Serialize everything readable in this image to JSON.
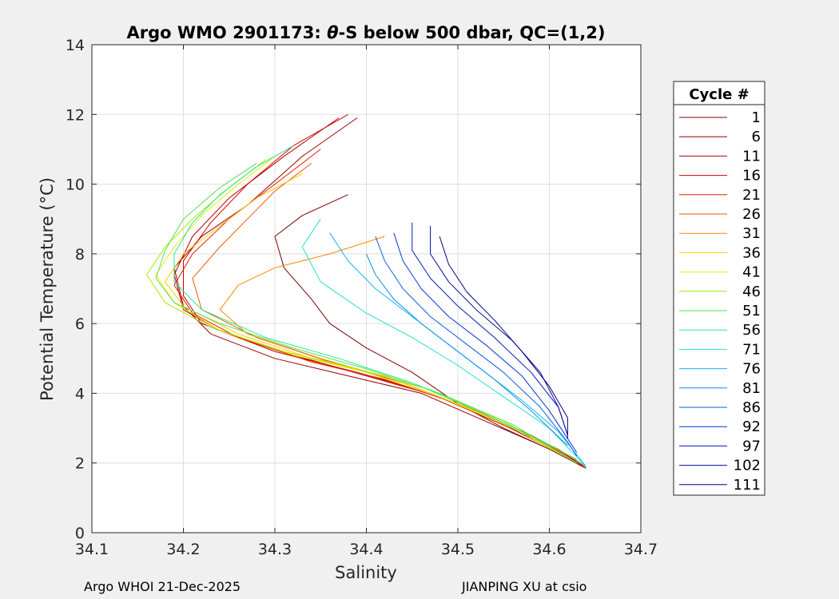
{
  "footer": {
    "left": "Argo WHOI 21-Dec-2025",
    "right": "JIANPING XU at csio"
  },
  "chart_data": {
    "type": "line",
    "title_prefix": "Argo WMO 2901173: ",
    "title_symbol": "θ",
    "title_suffix": "-S below 500 dbar,  QC=(1,2)",
    "xlabel": "Salinity",
    "ylabel": "Potential Temperature (°C)",
    "xlim": [
      34.1,
      34.7
    ],
    "ylim": [
      0,
      14
    ],
    "xticks": [
      34.1,
      34.2,
      34.3,
      34.4,
      34.5,
      34.6,
      34.7
    ],
    "xtick_labels": [
      "34.1",
      "34.2",
      "34.3",
      "34.4",
      "34.5",
      "34.6",
      "34.7"
    ],
    "yticks": [
      0,
      2,
      4,
      6,
      8,
      10,
      12,
      14
    ],
    "ytick_labels": [
      "0",
      "2",
      "4",
      "6",
      "8",
      "10",
      "12",
      "14"
    ],
    "grid": true,
    "legend_title": "Cycle #",
    "legend_position": "right-outside",
    "series": [
      {
        "name": "1",
        "color": "#7f0000",
        "points": [
          [
            34.38,
            9.7
          ],
          [
            34.33,
            9.1
          ],
          [
            34.3,
            8.5
          ],
          [
            34.31,
            7.6
          ],
          [
            34.34,
            6.7
          ],
          [
            34.36,
            6.0
          ],
          [
            34.4,
            5.3
          ],
          [
            34.45,
            4.6
          ],
          [
            34.5,
            3.7
          ],
          [
            34.55,
            3.0
          ],
          [
            34.6,
            2.4
          ],
          [
            34.64,
            1.85
          ]
        ]
      },
      {
        "name": "6",
        "color": "#9a0000",
        "points": [
          [
            34.39,
            11.9
          ],
          [
            34.33,
            10.8
          ],
          [
            34.27,
            9.4
          ],
          [
            34.22,
            8.5
          ],
          [
            34.19,
            7.6
          ],
          [
            34.2,
            6.5
          ],
          [
            34.23,
            5.7
          ],
          [
            34.3,
            5.0
          ],
          [
            34.38,
            4.5
          ],
          [
            34.46,
            4.0
          ],
          [
            34.53,
            3.2
          ],
          [
            34.6,
            2.4
          ],
          [
            34.64,
            1.85
          ]
        ]
      },
      {
        "name": "11",
        "color": "#b50000",
        "points": [
          [
            34.37,
            11.9
          ],
          [
            34.31,
            10.8
          ],
          [
            34.25,
            9.6
          ],
          [
            34.21,
            8.5
          ],
          [
            34.19,
            7.4
          ],
          [
            34.2,
            6.4
          ],
          [
            34.24,
            5.8
          ],
          [
            34.32,
            5.1
          ],
          [
            34.4,
            4.5
          ],
          [
            34.48,
            3.9
          ],
          [
            34.55,
            3.1
          ],
          [
            34.61,
            2.3
          ],
          [
            34.64,
            1.9
          ]
        ]
      },
      {
        "name": "16",
        "color": "#d00000",
        "points": [
          [
            34.38,
            12.0
          ],
          [
            34.32,
            11.1
          ],
          [
            34.27,
            10.0
          ],
          [
            34.23,
            8.9
          ],
          [
            34.2,
            7.8
          ],
          [
            34.2,
            6.8
          ],
          [
            34.22,
            6.0
          ],
          [
            34.3,
            5.2
          ],
          [
            34.39,
            4.6
          ],
          [
            34.47,
            4.0
          ],
          [
            34.54,
            3.2
          ],
          [
            34.61,
            2.4
          ],
          [
            34.64,
            1.85
          ]
        ]
      },
      {
        "name": "21",
        "color": "#e51a00",
        "points": [
          [
            34.35,
            11.0
          ],
          [
            34.3,
            10.0
          ],
          [
            34.25,
            9.0
          ],
          [
            34.21,
            8.0
          ],
          [
            34.19,
            7.1
          ],
          [
            34.21,
            6.3
          ],
          [
            34.26,
            5.6
          ],
          [
            34.34,
            4.9
          ],
          [
            34.42,
            4.4
          ],
          [
            34.5,
            3.7
          ],
          [
            34.57,
            2.9
          ],
          [
            34.62,
            2.2
          ],
          [
            34.64,
            1.9
          ]
        ]
      },
      {
        "name": "26",
        "color": "#ef5a00",
        "points": [
          [
            34.34,
            10.6
          ],
          [
            34.3,
            9.8
          ],
          [
            34.27,
            9.0
          ],
          [
            34.24,
            8.2
          ],
          [
            34.21,
            7.3
          ],
          [
            34.22,
            6.4
          ],
          [
            34.28,
            5.6
          ],
          [
            34.36,
            4.9
          ],
          [
            34.44,
            4.3
          ],
          [
            34.51,
            3.6
          ],
          [
            34.58,
            2.8
          ],
          [
            34.63,
            2.1
          ]
        ]
      },
      {
        "name": "31",
        "color": "#f58a00",
        "points": [
          [
            34.42,
            8.5
          ],
          [
            34.36,
            8.0
          ],
          [
            34.3,
            7.6
          ],
          [
            34.26,
            7.1
          ],
          [
            34.24,
            6.4
          ],
          [
            34.27,
            5.7
          ],
          [
            34.35,
            5.0
          ],
          [
            34.43,
            4.4
          ],
          [
            34.5,
            3.7
          ],
          [
            34.57,
            2.9
          ],
          [
            34.63,
            2.1
          ]
        ]
      },
      {
        "name": "36",
        "color": "#ffcc00",
        "points": [
          [
            34.33,
            10.3
          ],
          [
            34.28,
            9.6
          ],
          [
            34.24,
            8.8
          ],
          [
            34.2,
            8.0
          ],
          [
            34.18,
            7.2
          ],
          [
            34.2,
            6.5
          ],
          [
            34.26,
            5.7
          ],
          [
            34.34,
            5.0
          ],
          [
            34.42,
            4.5
          ],
          [
            34.5,
            3.7
          ],
          [
            34.57,
            2.9
          ],
          [
            34.63,
            2.0
          ]
        ]
      },
      {
        "name": "41",
        "color": "#e6f000",
        "points": [
          [
            34.3,
            10.8
          ],
          [
            34.26,
            10.0
          ],
          [
            34.22,
            9.1
          ],
          [
            34.19,
            8.2
          ],
          [
            34.17,
            7.4
          ],
          [
            34.19,
            6.6
          ],
          [
            34.24,
            5.8
          ],
          [
            34.32,
            5.1
          ],
          [
            34.4,
            4.6
          ],
          [
            34.48,
            3.9
          ],
          [
            34.56,
            3.0
          ],
          [
            34.63,
            2.0
          ]
        ]
      },
      {
        "name": "46",
        "color": "#a8e600",
        "points": [
          [
            34.29,
            10.7
          ],
          [
            34.25,
            9.9
          ],
          [
            34.21,
            9.0
          ],
          [
            34.18,
            8.2
          ],
          [
            34.16,
            7.4
          ],
          [
            34.18,
            6.6
          ],
          [
            34.23,
            5.9
          ],
          [
            34.31,
            5.2
          ],
          [
            34.39,
            4.7
          ],
          [
            34.47,
            4.1
          ],
          [
            34.55,
            3.2
          ],
          [
            34.63,
            2.0
          ]
        ]
      },
      {
        "name": "51",
        "color": "#55e050",
        "points": [
          [
            34.28,
            10.6
          ],
          [
            34.24,
            9.9
          ],
          [
            34.2,
            9.0
          ],
          [
            34.18,
            8.1
          ],
          [
            34.17,
            7.3
          ],
          [
            34.19,
            6.6
          ],
          [
            34.24,
            6.0
          ],
          [
            34.32,
            5.3
          ],
          [
            34.4,
            4.7
          ],
          [
            34.48,
            4.0
          ],
          [
            34.56,
            3.1
          ],
          [
            34.63,
            2.0
          ]
        ]
      },
      {
        "name": "56",
        "color": "#2ae88c",
        "points": [
          [
            34.32,
            11.1
          ],
          [
            34.28,
            10.5
          ],
          [
            34.24,
            9.7
          ],
          [
            34.21,
            8.9
          ],
          [
            34.19,
            8.0
          ],
          [
            34.19,
            7.2
          ],
          [
            34.22,
            6.4
          ],
          [
            34.29,
            5.6
          ],
          [
            34.37,
            5.0
          ],
          [
            34.45,
            4.3
          ],
          [
            34.53,
            3.4
          ],
          [
            34.61,
            2.4
          ],
          [
            34.64,
            1.9
          ]
        ]
      },
      {
        "name": "71",
        "color": "#20e0d0",
        "points": [
          [
            34.35,
            9.0
          ],
          [
            34.33,
            8.2
          ],
          [
            34.35,
            7.2
          ],
          [
            34.4,
            6.3
          ],
          [
            34.45,
            5.6
          ],
          [
            34.5,
            4.8
          ],
          [
            34.55,
            3.9
          ],
          [
            34.6,
            3.0
          ],
          [
            34.64,
            1.9
          ]
        ]
      },
      {
        "name": "76",
        "color": "#10b8f0",
        "points": [
          [
            34.36,
            8.6
          ],
          [
            34.38,
            7.8
          ],
          [
            34.41,
            7.0
          ],
          [
            34.45,
            6.2
          ],
          [
            34.49,
            5.4
          ],
          [
            34.53,
            4.6
          ],
          [
            34.57,
            3.8
          ],
          [
            34.61,
            2.9
          ],
          [
            34.64,
            1.9
          ]
        ]
      },
      {
        "name": "81",
        "color": "#0a8cf0",
        "points": [
          [
            34.4,
            8.0
          ],
          [
            34.41,
            7.4
          ],
          [
            34.43,
            6.7
          ],
          [
            34.46,
            6.0
          ],
          [
            34.5,
            5.2
          ],
          [
            34.54,
            4.4
          ],
          [
            34.58,
            3.5
          ],
          [
            34.62,
            2.5
          ]
        ]
      },
      {
        "name": "86",
        "color": "#0a5ce8",
        "points": [
          [
            34.41,
            8.5
          ],
          [
            34.42,
            7.8
          ],
          [
            34.44,
            7.0
          ],
          [
            34.47,
            6.2
          ],
          [
            34.51,
            5.4
          ],
          [
            34.55,
            4.6
          ],
          [
            34.59,
            3.6
          ],
          [
            34.62,
            2.6
          ],
          [
            34.63,
            2.2
          ]
        ]
      },
      {
        "name": "92",
        "color": "#0036d8",
        "points": [
          [
            34.43,
            8.6
          ],
          [
            34.44,
            7.8
          ],
          [
            34.46,
            7.0
          ],
          [
            34.49,
            6.2
          ],
          [
            34.53,
            5.4
          ],
          [
            34.57,
            4.5
          ],
          [
            34.6,
            3.5
          ],
          [
            34.62,
            2.7
          ],
          [
            34.63,
            2.3
          ]
        ]
      },
      {
        "name": "97",
        "color": "#0018c0",
        "points": [
          [
            34.45,
            8.9
          ],
          [
            34.45,
            8.1
          ],
          [
            34.47,
            7.3
          ],
          [
            34.5,
            6.5
          ],
          [
            34.54,
            5.6
          ],
          [
            34.58,
            4.6
          ],
          [
            34.61,
            3.6
          ],
          [
            34.62,
            2.8
          ]
        ]
      },
      {
        "name": "102",
        "color": "#000c9c",
        "points": [
          [
            34.47,
            8.8
          ],
          [
            34.47,
            8.0
          ],
          [
            34.49,
            7.2
          ],
          [
            34.52,
            6.4
          ],
          [
            34.56,
            5.5
          ],
          [
            34.59,
            4.6
          ],
          [
            34.61,
            3.6
          ],
          [
            34.62,
            2.8
          ]
        ]
      },
      {
        "name": "111",
        "color": "#000080",
        "points": [
          [
            34.48,
            8.5
          ],
          [
            34.49,
            7.7
          ],
          [
            34.51,
            6.9
          ],
          [
            34.54,
            6.1
          ],
          [
            34.57,
            5.2
          ],
          [
            34.6,
            4.2
          ],
          [
            34.62,
            3.3
          ],
          [
            34.62,
            2.7
          ]
        ]
      }
    ]
  }
}
